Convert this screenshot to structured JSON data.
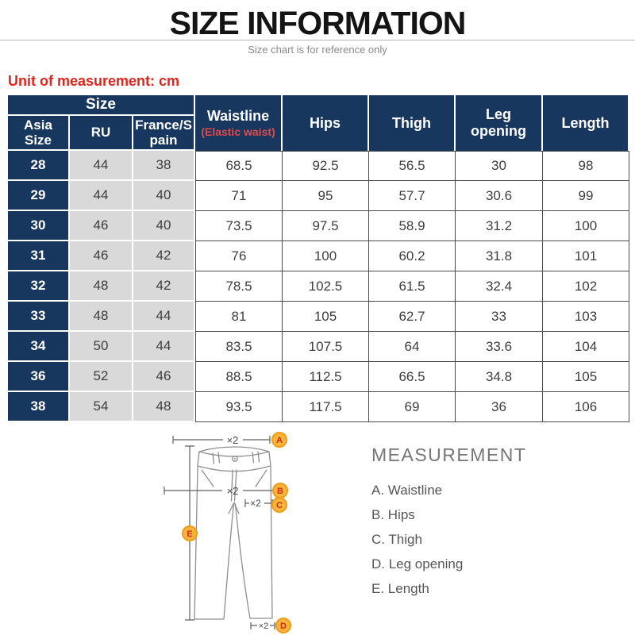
{
  "page": {
    "title": "SIZE INFORMATION",
    "subtitle": "Size chart is for reference only",
    "unit_note": "Unit of measurement: cm"
  },
  "table": {
    "group_header": "Size",
    "columns": {
      "asia": "Asia Size",
      "ru": "RU",
      "france": "France/S pain",
      "waistline": "Waistline",
      "waistline_sub": "(Elastic waist)",
      "hips": "Hips",
      "thigh": "Thigh",
      "leg_opening": "Leg opening",
      "length": "Length"
    },
    "rows": [
      {
        "asia": "28",
        "ru": "44",
        "france": "38",
        "waistline": "68.5",
        "hips": "92.5",
        "thigh": "56.5",
        "leg_opening": "30",
        "length": "98"
      },
      {
        "asia": "29",
        "ru": "44",
        "france": "40",
        "waistline": "71",
        "hips": "95",
        "thigh": "57.7",
        "leg_opening": "30.6",
        "length": "99"
      },
      {
        "asia": "30",
        "ru": "46",
        "france": "40",
        "waistline": "73.5",
        "hips": "97.5",
        "thigh": "58.9",
        "leg_opening": "31.2",
        "length": "100"
      },
      {
        "asia": "31",
        "ru": "46",
        "france": "42",
        "waistline": "76",
        "hips": "100",
        "thigh": "60.2",
        "leg_opening": "31.8",
        "length": "101"
      },
      {
        "asia": "32",
        "ru": "48",
        "france": "42",
        "waistline": "78.5",
        "hips": "102.5",
        "thigh": "61.5",
        "leg_opening": "32.4",
        "length": "102"
      },
      {
        "asia": "33",
        "ru": "48",
        "france": "44",
        "waistline": "81",
        "hips": "105",
        "thigh": "62.7",
        "leg_opening": "33",
        "length": "103"
      },
      {
        "asia": "34",
        "ru": "50",
        "france": "44",
        "waistline": "83.5",
        "hips": "107.5",
        "thigh": "64",
        "leg_opening": "33.6",
        "length": "104"
      },
      {
        "asia": "36",
        "ru": "52",
        "france": "46",
        "waistline": "88.5",
        "hips": "112.5",
        "thigh": "66.5",
        "leg_opening": "34.8",
        "length": "105"
      },
      {
        "asia": "38",
        "ru": "54",
        "france": "48",
        "waistline": "93.5",
        "hips": "117.5",
        "thigh": "69",
        "leg_opening": "36",
        "length": "106"
      }
    ]
  },
  "diagram": {
    "scale_label": "×2",
    "markers": [
      "A",
      "B",
      "C",
      "D",
      "E"
    ]
  },
  "measurement": {
    "title": "MEASUREMENT",
    "items": [
      "A. Waistline",
      "B. Hips",
      "C. Thigh",
      "D. Leg opening",
      "E. Length"
    ]
  },
  "colors": {
    "header_navy": "#17375e",
    "cell_gray": "#d9d9d9",
    "accent_red": "#e3241d",
    "elastic_note_red": "#e04b4b",
    "marker_orange": "#f6b53a",
    "marker_letter_red": "#ce2d17"
  }
}
